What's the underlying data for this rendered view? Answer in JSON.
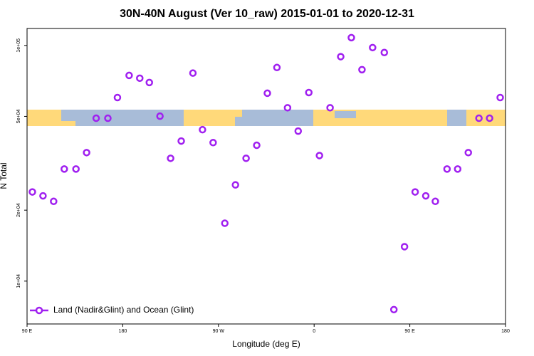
{
  "chart_data": {
    "type": "scatter",
    "title": "30N-40N August (Ver 10_raw)   2015-01-01 to 2020-12-31",
    "xlabel": "Longitude (deg E)",
    "ylabel": "N Total",
    "x": [
      95,
      105,
      115,
      125,
      136,
      146,
      155,
      166,
      175,
      186,
      196,
      205,
      215,
      225,
      235,
      246,
      255,
      265,
      276,
      286,
      296,
      306,
      316,
      325,
      335,
      345,
      355,
      365,
      375,
      385,
      395,
      405,
      415,
      426,
      435,
      445,
      455,
      465,
      474,
      485,
      495,
      505,
      515,
      525,
      535
    ],
    "series": [
      {
        "name": "Land (Nadir&Glint) and Ocean (Glint)",
        "color": "#a020f0",
        "values": [
          23900,
          23000,
          21800,
          29900,
          29900,
          35100,
          49100,
          49100,
          60100,
          74600,
          72600,
          69600,
          50100,
          33200,
          39300,
          76300,
          43900,
          38700,
          17600,
          25600,
          33200,
          37700,
          62700,
          80600,
          54400,
          43300,
          63100,
          34100,
          54400,
          89600,
          107900,
          78900,
          97900,
          93300,
          7570,
          14000,
          23900,
          23000,
          21800,
          29900,
          29900,
          35100,
          49100,
          49100,
          60100
        ]
      }
    ],
    "xlim": [
      90,
      540
    ],
    "xticks": [
      {
        "value": 90,
        "label": "90 E"
      },
      {
        "value": 180,
        "label": "180"
      },
      {
        "value": 270,
        "label": "90 W"
      },
      {
        "value": 360,
        "label": "0"
      },
      {
        "value": 450,
        "label": "90 E"
      },
      {
        "value": 540,
        "label": "180"
      }
    ],
    "ylim": [
      6580,
      118000
    ],
    "log_y": true,
    "yticks": [
      {
        "value": 10000,
        "label": "1e+04"
      },
      {
        "value": 20000,
        "label": "2e+04"
      },
      {
        "value": 50000,
        "label": "5e+04"
      },
      {
        "value": 100000,
        "label": "1e+05"
      }
    ],
    "legend": "lower left"
  }
}
